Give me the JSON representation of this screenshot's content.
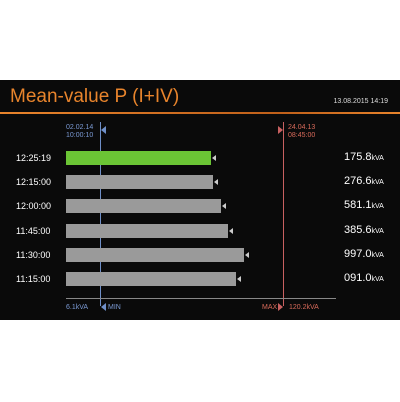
{
  "header": {
    "title": "Mean-value P (I+IV)",
    "datetime": "13.08.2015   14:19"
  },
  "min_marker": {
    "date": "02.02.14",
    "time": "10:00:10",
    "value": "6.1kVA",
    "label": "MIN"
  },
  "max_marker": {
    "date": "24.04.13",
    "time": "08:45:00",
    "value": "120.2kVA",
    "label": "MAX"
  },
  "rows": [
    {
      "time": "12:25:19",
      "value": "175.8",
      "unit": "kVA"
    },
    {
      "time": "12:15:00",
      "value": "276.6",
      "unit": "kVA"
    },
    {
      "time": "12:00:00",
      "value": "581.1",
      "unit": "kVA"
    },
    {
      "time": "11:45:00",
      "value": "385.6",
      "unit": "kVA"
    },
    {
      "time": "11:30:00",
      "value": "997.0",
      "unit": "kVA"
    },
    {
      "time": "11:15:00",
      "value": "091.0",
      "unit": "kVA"
    }
  ]
}
